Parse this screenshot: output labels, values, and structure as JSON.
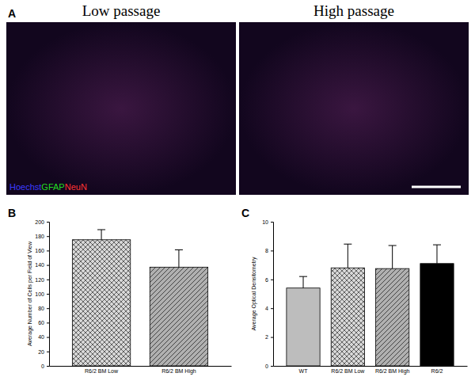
{
  "figure": {
    "panel_label": "A",
    "images": [
      {
        "title": "Low passage"
      },
      {
        "title": "High passage"
      }
    ],
    "stains": [
      {
        "text": "Hoechst",
        "color": "#3b3bff"
      },
      {
        "text": "GFAP",
        "color": "#22dd22"
      },
      {
        "text": "NeuN",
        "color": "#ff3333"
      }
    ]
  },
  "chart_data": [
    {
      "type": "bar",
      "title": "B",
      "y_label": "Average Number of Cells per Field of View",
      "categories": [
        "R6/2 BM Low",
        "R6/2 BM High"
      ],
      "values": [
        175,
        137
      ],
      "errors": [
        14,
        24
      ],
      "colors": [
        "#d8d8d8",
        "#b0b0b0"
      ],
      "ylim": [
        0,
        200
      ],
      "yticks": [
        0,
        20,
        40,
        60,
        80,
        100,
        120,
        140,
        160,
        180,
        200
      ]
    },
    {
      "type": "bar",
      "title": "C",
      "y_label": "Average Optical Densitometry",
      "categories": [
        "WT",
        "R6/2 BM Low",
        "R6/2 BM High",
        "R6/2"
      ],
      "values": [
        5.4,
        6.8,
        6.75,
        7.1
      ],
      "errors": [
        0.8,
        1.65,
        1.6,
        1.3
      ],
      "colors": [
        "#bdbdbd",
        "#d8d8d8",
        "#b0b0b0",
        "#000000"
      ],
      "ylim": [
        0,
        10
      ],
      "yticks": [
        0,
        2,
        4,
        6,
        8,
        10
      ]
    }
  ]
}
